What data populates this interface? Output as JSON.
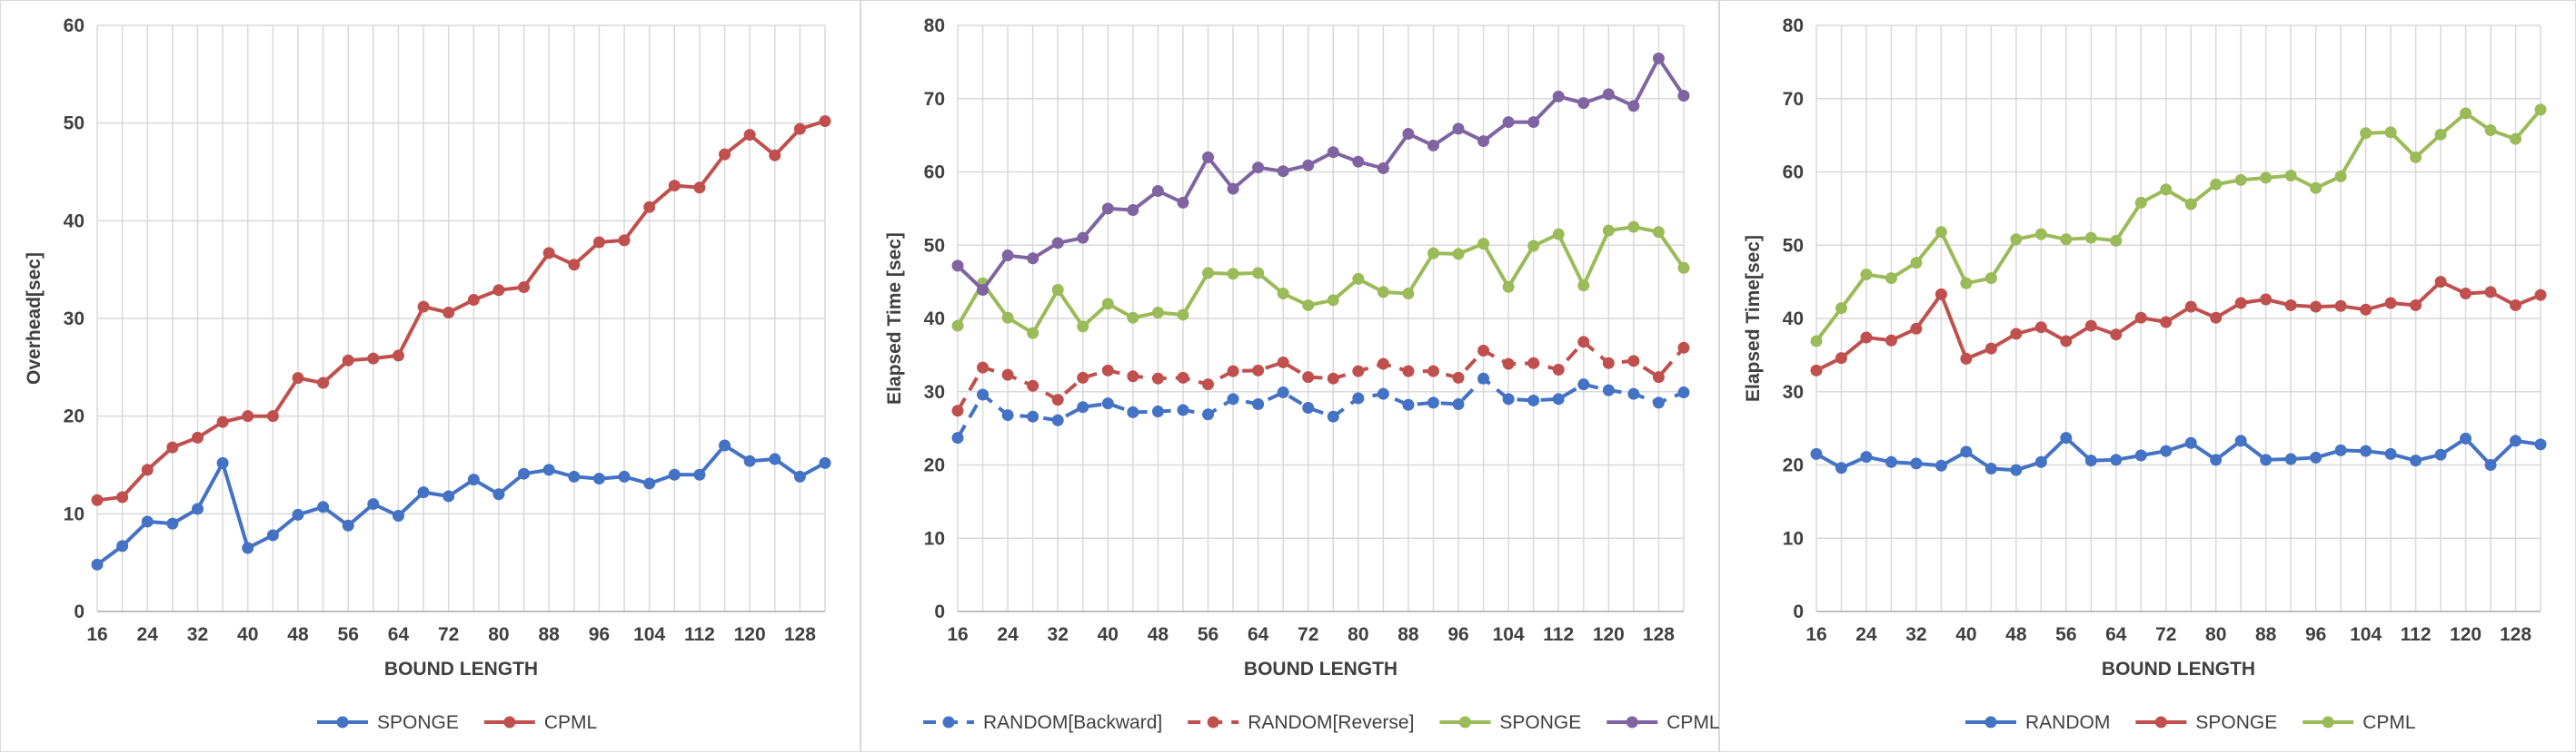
{
  "chart_data": [
    {
      "type": "line",
      "xlabel": "BOUND LENGTH",
      "ylabel": "Overhead[sec]",
      "ylim": [
        0,
        60
      ],
      "yticks": [
        0,
        10,
        20,
        30,
        40,
        50,
        60
      ],
      "xticks": [
        16,
        24,
        32,
        40,
        48,
        56,
        64,
        72,
        80,
        88,
        96,
        104,
        112,
        120,
        128
      ],
      "x": [
        16,
        20,
        24,
        28,
        32,
        36,
        40,
        44,
        48,
        52,
        56,
        60,
        64,
        68,
        72,
        76,
        80,
        84,
        88,
        92,
        96,
        100,
        104,
        108,
        112,
        116,
        120,
        124,
        128,
        132
      ],
      "grid": "vertical and horizontal",
      "legend_position": "bottom",
      "series": [
        {
          "name": "SPONGE",
          "color": "#4472c4",
          "dashed": false,
          "values": [
            4.8,
            6.7,
            9.2,
            9.0,
            10.5,
            15.2,
            6.5,
            7.8,
            9.9,
            10.7,
            8.8,
            11.0,
            9.8,
            12.2,
            11.8,
            13.5,
            12.0,
            14.1,
            14.5,
            13.8,
            13.6,
            13.8,
            13.1,
            14.0,
            14.0,
            17.0,
            15.4,
            15.6,
            13.8,
            15.2
          ]
        },
        {
          "name": "CPML",
          "color": "#c0504d",
          "dashed": false,
          "values": [
            11.4,
            11.7,
            14.5,
            16.8,
            17.8,
            19.4,
            20.0,
            20.0,
            23.9,
            23.4,
            25.7,
            25.9,
            26.2,
            31.2,
            30.6,
            31.9,
            32.9,
            33.2,
            36.7,
            35.5,
            37.8,
            38.0,
            41.4,
            43.6,
            43.4,
            46.8,
            48.8,
            46.7,
            49.4,
            50.2
          ]
        }
      ]
    },
    {
      "type": "line",
      "xlabel": "BOUND LENGTH",
      "ylabel": "Elapsed Time [sec]",
      "ylim": [
        0,
        80
      ],
      "yticks": [
        0,
        10,
        20,
        30,
        40,
        50,
        60,
        70,
        80
      ],
      "xticks": [
        16,
        24,
        32,
        40,
        48,
        56,
        64,
        72,
        80,
        88,
        96,
        104,
        112,
        120,
        128
      ],
      "x": [
        16,
        20,
        24,
        28,
        32,
        36,
        40,
        44,
        48,
        52,
        56,
        60,
        64,
        68,
        72,
        76,
        80,
        84,
        88,
        92,
        96,
        100,
        104,
        108,
        112,
        116,
        120,
        124,
        128,
        132
      ],
      "grid": "vertical and horizontal",
      "legend_position": "bottom",
      "series": [
        {
          "name": "RANDOM[Backward]",
          "color": "#4472c4",
          "dashed": true,
          "values": [
            23.7,
            29.6,
            26.8,
            26.6,
            26.1,
            27.9,
            28.4,
            27.2,
            27.3,
            27.5,
            26.9,
            29.0,
            28.3,
            29.9,
            27.8,
            26.6,
            29.1,
            29.7,
            28.2,
            28.5,
            28.3,
            31.8,
            29.0,
            28.8,
            29.0,
            31.0,
            30.2,
            29.7,
            28.5,
            29.9
          ]
        },
        {
          "name": "RANDOM[Reverse]",
          "color": "#c0504d",
          "dashed": true,
          "values": [
            27.4,
            33.3,
            32.3,
            30.8,
            28.9,
            31.9,
            32.9,
            32.1,
            31.8,
            31.9,
            31.0,
            32.8,
            32.9,
            34.0,
            32.0,
            31.8,
            32.8,
            33.8,
            32.8,
            32.8,
            31.9,
            35.6,
            33.8,
            33.9,
            33.0,
            36.8,
            33.9,
            34.2,
            32.0,
            36.0
          ]
        },
        {
          "name": "SPONGE",
          "color": "#9bbb59",
          "dashed": false,
          "values": [
            39.0,
            44.8,
            40.1,
            38.0,
            43.9,
            38.9,
            42.0,
            40.1,
            40.8,
            40.5,
            46.2,
            46.1,
            46.2,
            43.4,
            41.8,
            42.5,
            45.4,
            43.6,
            43.4,
            48.9,
            48.8,
            50.2,
            44.3,
            49.9,
            51.5,
            44.5,
            52.0,
            52.5,
            51.8,
            46.9
          ]
        },
        {
          "name": "CPML",
          "color": "#8064a2",
          "dashed": false,
          "values": [
            47.2,
            43.9,
            48.6,
            48.2,
            50.3,
            51.0,
            55.0,
            54.8,
            57.4,
            55.8,
            62.0,
            57.7,
            60.6,
            60.1,
            60.9,
            62.7,
            61.4,
            60.5,
            65.2,
            63.6,
            65.9,
            64.2,
            66.8,
            66.8,
            70.3,
            69.4,
            70.6,
            69.0,
            75.5,
            70.4
          ]
        }
      ]
    },
    {
      "type": "line",
      "xlabel": "BOUND LENGTH",
      "ylabel": "Elapsed Time[sec]",
      "ylim": [
        0,
        80
      ],
      "yticks": [
        0,
        10,
        20,
        30,
        40,
        50,
        60,
        70,
        80
      ],
      "xticks": [
        16,
        24,
        32,
        40,
        48,
        56,
        64,
        72,
        80,
        88,
        96,
        104,
        112,
        120,
        128
      ],
      "x": [
        16,
        20,
        24,
        28,
        32,
        36,
        40,
        44,
        48,
        52,
        56,
        60,
        64,
        68,
        72,
        76,
        80,
        84,
        88,
        92,
        96,
        100,
        104,
        108,
        112,
        116,
        120,
        124,
        128,
        132
      ],
      "grid": "vertical and horizontal",
      "legend_position": "bottom",
      "series": [
        {
          "name": "RANDOM",
          "color": "#4472c4",
          "dashed": false,
          "values": [
            21.5,
            19.6,
            21.1,
            20.4,
            20.2,
            19.9,
            21.8,
            19.5,
            19.3,
            20.4,
            23.7,
            20.6,
            20.7,
            21.3,
            21.9,
            23.0,
            20.7,
            23.3,
            20.7,
            20.8,
            21.0,
            22.0,
            21.9,
            21.5,
            20.6,
            21.4,
            23.6,
            20.0,
            23.3,
            22.8
          ]
        },
        {
          "name": "SPONGE",
          "color": "#c0504d",
          "dashed": false,
          "values": [
            32.9,
            34.6,
            37.4,
            37.0,
            38.6,
            43.3,
            34.5,
            35.9,
            37.9,
            38.8,
            36.9,
            39.0,
            37.8,
            40.1,
            39.5,
            41.6,
            40.1,
            42.1,
            42.6,
            41.8,
            41.6,
            41.7,
            41.2,
            42.1,
            41.8,
            45.0,
            43.4,
            43.6,
            41.8,
            43.2
          ]
        },
        {
          "name": "CPML",
          "color": "#9bbb59",
          "dashed": false,
          "values": [
            36.9,
            41.4,
            46.0,
            45.5,
            47.6,
            51.8,
            44.8,
            45.5,
            50.8,
            51.5,
            50.8,
            51.0,
            50.6,
            55.8,
            57.6,
            55.6,
            58.3,
            58.9,
            59.2,
            59.5,
            57.8,
            59.4,
            65.3,
            65.4,
            62.0,
            65.1,
            68.0,
            65.7,
            64.5,
            68.5
          ]
        }
      ]
    }
  ]
}
